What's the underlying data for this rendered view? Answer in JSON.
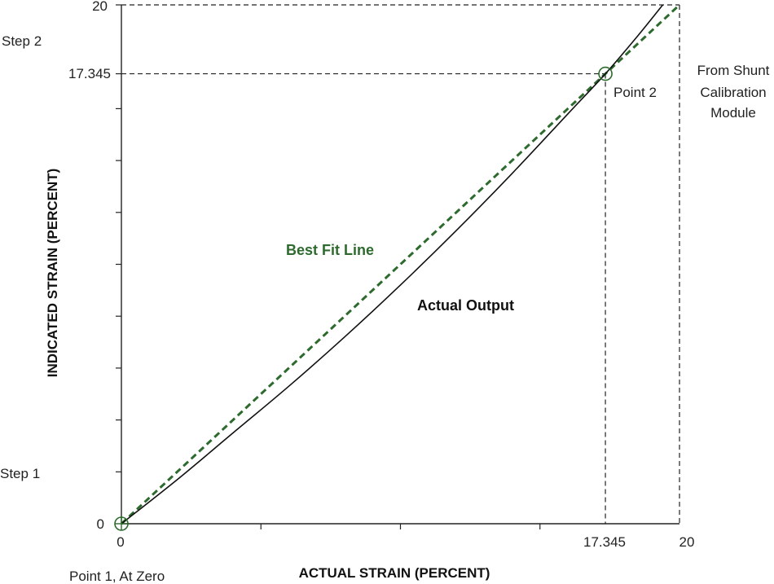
{
  "chart_data": {
    "type": "line",
    "xlabel": "ACTUAL STRAIN (PERCENT)",
    "ylabel": "INDICATED STRAIN (PERCENT)",
    "xlim": [
      0,
      20
    ],
    "ylim": [
      0,
      20
    ],
    "x_tick_labels": [
      "0",
      "17.345",
      "20"
    ],
    "y_tick_labels": [
      "0",
      "17.345",
      "20"
    ],
    "x_minor_ticks": [
      5,
      10,
      15
    ],
    "y_minor_ticks": [
      2,
      4,
      6,
      8,
      10,
      12,
      14,
      16
    ],
    "grid": false,
    "series": [
      {
        "name": "Actual Output",
        "style": "solid",
        "color": "#111111",
        "x": [
          0,
          2,
          4,
          6,
          8,
          10,
          12,
          14,
          16,
          17.345,
          18.5,
          19.4
        ],
        "y": [
          0,
          1.7,
          3.5,
          5.3,
          7.2,
          9.2,
          11.3,
          13.5,
          15.8,
          17.345,
          18.8,
          20
        ]
      },
      {
        "name": "Best Fit Line",
        "style": "dashed",
        "color": "#2d6a2d",
        "x": [
          0,
          20
        ],
        "y": [
          0,
          20
        ]
      }
    ],
    "points": [
      {
        "label": "Point 1, At Zero",
        "x": 0,
        "y": 0
      },
      {
        "label": "Point 2",
        "x": 17.345,
        "y": 17.345
      }
    ],
    "reference_lines": [
      {
        "orientation": "horizontal",
        "value": 17.345,
        "style": "dashed"
      },
      {
        "orientation": "horizontal",
        "value": 20,
        "style": "dashed"
      },
      {
        "orientation": "vertical",
        "value": 17.345,
        "style": "dashed"
      },
      {
        "orientation": "vertical",
        "value": 20,
        "style": "dashed"
      }
    ],
    "annotations": {
      "step1": "Step 1",
      "step2": "Step 2",
      "shunt_line1": "From Shunt",
      "shunt_line2": "Calibration",
      "shunt_line3": "Module"
    }
  }
}
